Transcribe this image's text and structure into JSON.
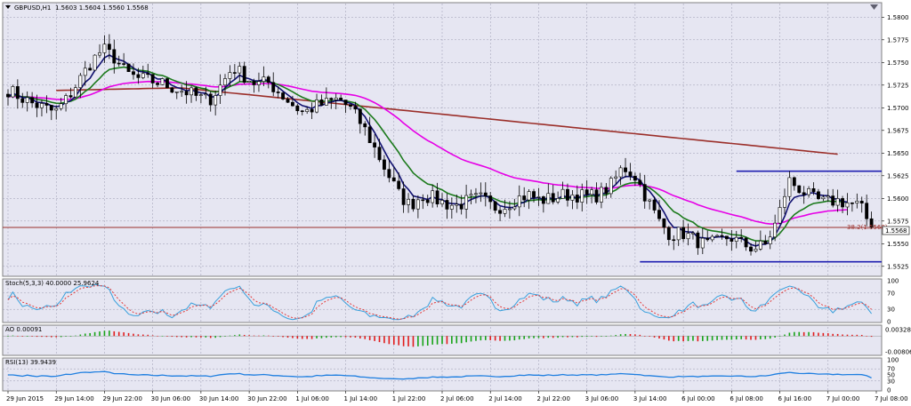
{
  "header": {
    "symbol": "GBPUSD,H1",
    "ohlc": "1.5603 1.5604 1.5560 1.5568"
  },
  "colors": {
    "background": "#e6e6f2",
    "grid": "#9a9ab0",
    "up_candle": "#ffffff",
    "down_candle": "#000000",
    "ma_fast": "#101070",
    "ma_green": "#1c7a1c",
    "ma_magenta": "#e600e6",
    "ma_brown": "#9b2f2a",
    "support_line": "#1f1fb0",
    "fib_line": "#9b2f2a",
    "stoch_main": "#39a0dc",
    "stoch_signal": "#e33b3b",
    "ao_up": "#17a317",
    "ao_down": "#e11b1b",
    "rsi": "#1f7fe0"
  },
  "chart_data": [
    {
      "type": "candlestick",
      "panel": "price",
      "title": "GBPUSD,H1",
      "ylim": [
        1.5515,
        1.5815
      ],
      "y_ticks": [
        "1.5800",
        "1.5775",
        "1.5750",
        "1.5725",
        "1.5700",
        "1.5675",
        "1.5650",
        "1.5625",
        "1.5600",
        "1.5575",
        "1.5550",
        "1.5525"
      ],
      "x_ticks": [
        "29 Jun 2015",
        "29 Jun 14:00",
        "29 Jun 22:00",
        "30 Jun 06:00",
        "30 Jun 14:00",
        "30 Jun 22:00",
        "1 Jul 06:00",
        "1 Jul 14:00",
        "1 Jul 22:00",
        "2 Jul 06:00",
        "2 Jul 14:00",
        "2 Jul 22:00",
        "3 Jul 06:00",
        "3 Jul 14:00",
        "6 Jul 00:00",
        "6 Jul 08:00",
        "6 Jul 16:00",
        "7 Jul 00:00",
        "7 Jul 08:00"
      ],
      "price_label": "1.5568",
      "fib_label": "38.2(1.5568)",
      "fib_level": 1.5568,
      "resistance_level": 1.563,
      "support_level": 1.553,
      "anchors": [
        1.572,
        1.5712,
        1.5705,
        1.57,
        1.5695,
        1.571,
        1.573,
        1.575,
        1.5765,
        1.5755,
        1.5738,
        1.5732,
        1.573,
        1.5727,
        1.5722,
        1.5718,
        1.5712,
        1.5708,
        1.5725,
        1.5745,
        1.5735,
        1.5726,
        1.5728,
        1.5716,
        1.5704,
        1.5694,
        1.5702,
        1.5705,
        1.571,
        1.5698,
        1.568,
        1.5655,
        1.563,
        1.5605,
        1.5592,
        1.5604,
        1.56,
        1.5594,
        1.5592,
        1.5598,
        1.56,
        1.559,
        1.5592,
        1.56,
        1.5604,
        1.5598,
        1.56,
        1.5604,
        1.5604,
        1.5602,
        1.5604,
        1.5615,
        1.5635,
        1.5625,
        1.56,
        1.5575,
        1.556,
        1.5562,
        1.5555,
        1.5548,
        1.5552,
        1.5558,
        1.555,
        1.5545,
        1.5548,
        1.5575,
        1.562,
        1.561,
        1.56,
        1.5595,
        1.5598,
        1.5595,
        1.5592,
        1.5568
      ]
    },
    {
      "type": "line",
      "panel": "stochastic",
      "title": "Stoch(5,3,3) 40.0000 25.9624",
      "ylim": [
        0,
        100
      ],
      "y_ticks": [
        "100",
        "70",
        "30",
        "0"
      ],
      "current_main": 40.0,
      "current_signal": 25.9624
    },
    {
      "type": "bar",
      "panel": "awesome_oscillator",
      "title": "AO 0.00091",
      "y_ticks": [
        "0.00328",
        "-0.00806"
      ],
      "current_value": 0.00091
    },
    {
      "type": "line",
      "panel": "rsi",
      "title": "RSI(13) 39.9439",
      "ylim": [
        0,
        100
      ],
      "y_ticks": [
        "100",
        "70",
        "50",
        "30",
        "0"
      ],
      "current_value": 39.9439
    }
  ]
}
